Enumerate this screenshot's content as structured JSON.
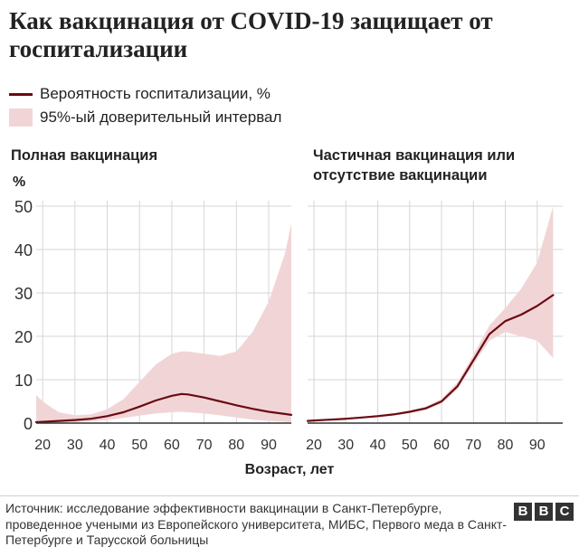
{
  "header": {
    "title": "Как вакцинация от COVID-19 защищает от госпитализации"
  },
  "legend": {
    "line_label": "Вероятность госпитализации, %",
    "band_label": "95%-ый доверительный интервал"
  },
  "axis": {
    "y_title": "%",
    "x_title": "Возраст, лет"
  },
  "colors": {
    "line": "#6b0a12",
    "band": "#f1d5d6",
    "grid": "#d6d6d6"
  },
  "footer": {
    "source": "Источник: исследование эффективности вакцинации в Санкт-Петербурге, проведенное учеными из Европейского университета, МИБС, Первого меда в Санкт-Петербурге и Тарусской больницы",
    "logo": [
      "B",
      "B",
      "C"
    ]
  },
  "chart_data": [
    {
      "type": "line",
      "title": "Полная вакцинация",
      "xlabel": "Возраст, лет",
      "ylabel": "%",
      "xlim": [
        18,
        97
      ],
      "ylim": [
        0,
        50
      ],
      "xticks": [
        20,
        30,
        40,
        50,
        60,
        70,
        80,
        90
      ],
      "yticks": [
        0,
        10,
        20,
        30,
        40,
        50
      ],
      "x": [
        18,
        20,
        25,
        30,
        35,
        40,
        45,
        50,
        55,
        60,
        63,
        65,
        70,
        75,
        80,
        85,
        90,
        95,
        97
      ],
      "y": [
        0.2,
        0.3,
        0.5,
        0.7,
        1.0,
        1.6,
        2.5,
        3.8,
        5.2,
        6.3,
        6.7,
        6.6,
        5.9,
        5.0,
        4.1,
        3.3,
        2.6,
        2.1,
        1.9
      ],
      "lower": [
        0.0,
        0.0,
        0.1,
        0.2,
        0.4,
        0.7,
        1.2,
        1.7,
        2.2,
        2.5,
        2.6,
        2.5,
        2.2,
        1.8,
        1.3,
        0.8,
        0.5,
        0.3,
        0.2
      ],
      "upper": [
        6.5,
        5.0,
        2.5,
        1.8,
        2.0,
        3.2,
        5.5,
        9.5,
        13.5,
        16.0,
        16.5,
        16.5,
        16.0,
        15.5,
        16.5,
        21.0,
        28.0,
        39.0,
        46.0
      ],
      "series": [
        {
          "name": "Вероятность госпитализации, %"
        },
        {
          "name": "95%-ый доверительный интервал"
        }
      ]
    },
    {
      "type": "line",
      "title": "Частичная вакцинация или отсутствие вакцинации",
      "xlabel": "Возраст, лет",
      "ylabel": "%",
      "xlim": [
        18,
        98
      ],
      "ylim": [
        0,
        50
      ],
      "xticks": [
        20,
        30,
        40,
        50,
        60,
        70,
        80,
        90
      ],
      "yticks": [
        0,
        10,
        20,
        30,
        40,
        50
      ],
      "x": [
        18,
        20,
        25,
        30,
        35,
        40,
        45,
        50,
        55,
        60,
        65,
        70,
        75,
        80,
        85,
        90,
        95
      ],
      "y": [
        0.5,
        0.6,
        0.8,
        1.0,
        1.3,
        1.6,
        2.0,
        2.6,
        3.4,
        5.0,
        8.5,
        14.5,
        20.5,
        23.5,
        25.0,
        27.0,
        29.5
      ],
      "lower": [
        0.3,
        0.4,
        0.6,
        0.8,
        1.1,
        1.4,
        1.8,
        2.3,
        3.0,
        4.5,
        7.8,
        13.5,
        19.0,
        21.0,
        20.0,
        19.0,
        15.0
      ],
      "upper": [
        0.7,
        0.8,
        1.0,
        1.2,
        1.5,
        1.9,
        2.3,
        2.9,
        3.8,
        5.6,
        9.4,
        15.8,
        22.5,
        26.5,
        31.0,
        37.0,
        50.0
      ],
      "series": [
        {
          "name": "Вероятность госпитализации, %"
        },
        {
          "name": "95%-ый доверительный интервал"
        }
      ]
    }
  ]
}
